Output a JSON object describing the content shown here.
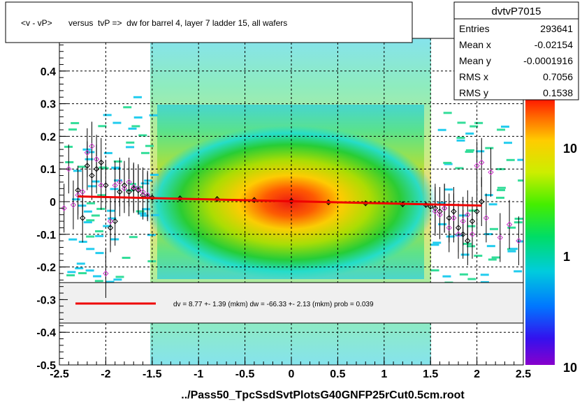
{
  "chart_data": {
    "type": "heatmap",
    "title": "<v - vP>       versus  tvP =>  dw for barrel 4, layer 7 ladder 15, all wafers",
    "xlabel": "../Pass50_TpcSsdSvtPlotsG40GNFP25rCut0.5cm.root",
    "ylabel": "",
    "xlim": [
      -2.5,
      2.5
    ],
    "ylim": [
      -0.5,
      0.5
    ],
    "x_ticks": [
      "-2.5",
      "-2",
      "-1.5",
      "-1",
      "-0.5",
      "0",
      "0.5",
      "1",
      "1.5",
      "2",
      "2.5"
    ],
    "y_ticks": [
      "-0.5",
      "-0.4",
      "-0.3",
      "-0.2",
      "-0.1",
      "0",
      "0.1",
      "0.2",
      "0.3",
      "0.4"
    ],
    "grid": true,
    "colorbar": {
      "scale": "log",
      "labels": [
        "1",
        "10",
        "10"
      ]
    },
    "stats": {
      "name": "dvtvP7015",
      "rows": [
        {
          "label": "Entries",
          "value": "293641"
        },
        {
          "label": "Mean x",
          "value": "-0.02154"
        },
        {
          "label": "Mean y",
          "value": "-0.0001916"
        },
        {
          "label": "RMS x",
          "value": "0.7056"
        },
        {
          "label": "RMS y",
          "value": "0.1538"
        }
      ]
    },
    "fit": {
      "legend_text": "dv =    8.77 +-  1.39 (mkm) dw =  -66.33 +-  2.13 (mkm) prob = 0.039",
      "line": [
        [
          -2.3,
          0.016
        ],
        [
          2.05,
          -0.012
        ]
      ],
      "color": "#ff0000"
    },
    "profile_black": {
      "x": [
        -2.3,
        -2.25,
        -2.2,
        -2.15,
        -2.1,
        -2.05,
        -2.0,
        -1.95,
        -1.9,
        -1.85,
        -1.8,
        -1.75,
        -1.7,
        -1.65,
        -1.6,
        -1.55,
        -1.5,
        -1.2,
        -0.8,
        -0.4,
        0.0,
        0.4,
        0.8,
        1.2,
        1.45,
        1.5,
        1.55,
        1.6,
        1.65,
        1.7,
        1.75,
        1.8,
        1.85,
        1.9,
        1.95,
        2.0,
        2.05
      ],
      "y": [
        0.035,
        -0.05,
        0.11,
        0.08,
        0.1,
        0.12,
        0.05,
        -0.08,
        -0.06,
        0.03,
        0.05,
        0.03,
        0.04,
        0.035,
        0.02,
        0.015,
        0.012,
        0.01,
        0.008,
        0.005,
        0.002,
        -0.002,
        -0.005,
        -0.008,
        -0.01,
        -0.015,
        -0.02,
        -0.03,
        -0.02,
        -0.05,
        -0.03,
        -0.08,
        -0.1,
        -0.12,
        -0.06,
        -0.03,
        0.0
      ]
    },
    "profile_magenta": {
      "x": [
        -2.45,
        -2.4,
        -2.35,
        -2.3,
        -2.25,
        -2.2,
        -2.15,
        -2.1,
        -2.05,
        -2.0,
        -1.95,
        -1.9,
        -1.85,
        -1.8,
        -1.75,
        -1.7,
        -1.65,
        -1.6,
        -1.55,
        1.55,
        1.6,
        1.65,
        1.7,
        1.75,
        1.8,
        1.85,
        1.9,
        1.95,
        2.0,
        2.05,
        2.1,
        2.15,
        2.25,
        2.35,
        2.45
      ],
      "y": [
        -0.02,
        0.1,
        -0.01,
        0.02,
        0.03,
        0.15,
        0.17,
        0.13,
        0.05,
        -0.22,
        -0.06,
        0.05,
        0.06,
        0.04,
        0.06,
        0.045,
        0.04,
        0.03,
        0.02,
        -0.03,
        -0.04,
        -0.02,
        -0.08,
        -0.05,
        -0.1,
        -0.06,
        -0.04,
        -0.1,
        0.11,
        0.12,
        -0.05,
        0.09,
        -0.11,
        -0.07,
        -0.12
      ]
    }
  }
}
